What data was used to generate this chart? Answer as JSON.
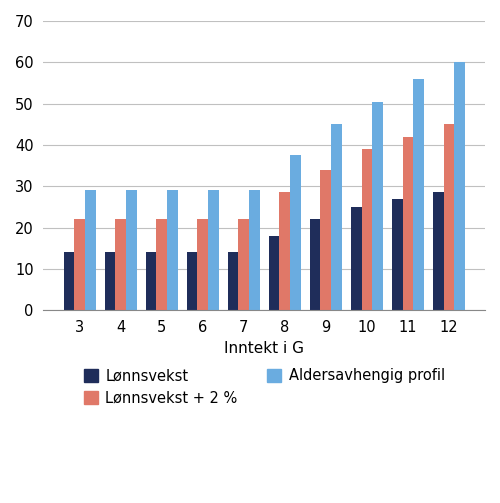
{
  "categories": [
    "3",
    "4",
    "5",
    "6",
    "7",
    "8",
    "9",
    "10",
    "11",
    "12"
  ],
  "series": [
    {
      "name": "Lønnsvekst",
      "values": [
        14,
        14,
        14,
        14,
        14,
        18,
        22,
        25,
        27,
        28.5
      ],
      "color": "#1f2d5a"
    },
    {
      "name": "Lønnsvekst + 2 %",
      "values": [
        22,
        22,
        22,
        22,
        22,
        28.5,
        34,
        39,
        42,
        45
      ],
      "color": "#e07868"
    },
    {
      "name": "Aldersavhengig profil",
      "values": [
        29,
        29,
        29,
        29,
        29,
        37.5,
        45,
        50.5,
        56,
        60
      ],
      "color": "#6aace0"
    }
  ],
  "xlabel": "Inntekt i G",
  "ylim": [
    0,
    70
  ],
  "yticks": [
    0,
    10,
    20,
    30,
    40,
    50,
    60,
    70
  ],
  "background_color": "#ffffff",
  "grid_color": "#c0c0c0",
  "bar_width": 0.26,
  "legend_fontsize": 10.5,
  "axis_fontsize": 11,
  "tick_fontsize": 10.5
}
